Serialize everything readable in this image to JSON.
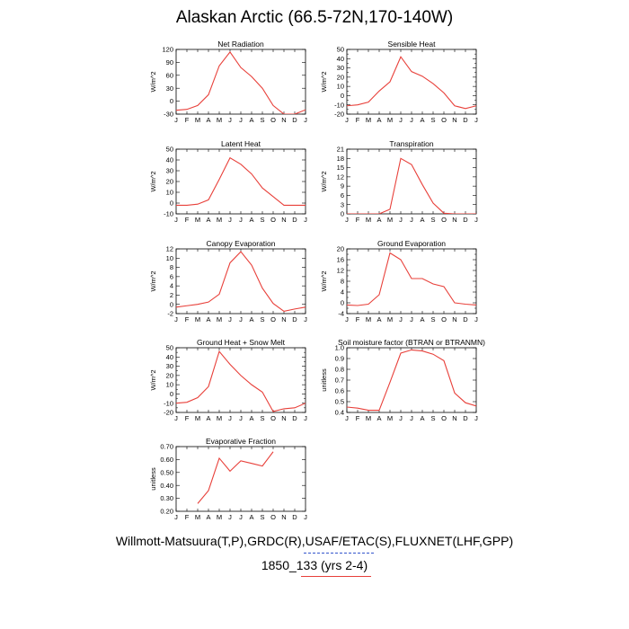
{
  "title": "Alaskan Arctic (66.5-72N,170-140W)",
  "footer": {
    "line1": "Willmott-Matsuura(T,P),GRDC(R),USAF/ETAC(S),FLUXNET(LHF,GPP)",
    "line2": "1850_133 (yrs 2-4)"
  },
  "colors": {
    "series": "#e8403a",
    "legend_dash": "#3355cc"
  },
  "chart_data": [
    {
      "type": "line",
      "title": "Net Radiation",
      "ylabel": "W/m^2",
      "categories": [
        "J",
        "F",
        "M",
        "A",
        "M",
        "J",
        "J",
        "A",
        "S",
        "O",
        "N",
        "D",
        "J"
      ],
      "ylim": [
        -30,
        120
      ],
      "yticks": [
        -30,
        0,
        30,
        60,
        90,
        120
      ],
      "ytick_labels": [
        "-30",
        "0",
        "30",
        "60",
        "90",
        "120"
      ],
      "values": [
        -21,
        -19,
        -10,
        15,
        82,
        114,
        78,
        57,
        30,
        -10,
        -30,
        -30,
        -20
      ]
    },
    {
      "type": "line",
      "title": "Sensible Heat",
      "ylabel": "W/m^2",
      "categories": [
        "J",
        "F",
        "M",
        "A",
        "M",
        "J",
        "J",
        "A",
        "S",
        "O",
        "N",
        "D",
        "J"
      ],
      "ylim": [
        -20,
        50
      ],
      "yticks": [
        -20,
        -10,
        0,
        10,
        20,
        30,
        40,
        50
      ],
      "ytick_labels": [
        "-20",
        "-10",
        "0",
        "10",
        "20",
        "30",
        "40",
        "50"
      ],
      "minor_step": 5,
      "values": [
        -11,
        -10,
        -7,
        5,
        15,
        42,
        26,
        21,
        13,
        3,
        -11,
        -14,
        -11
      ]
    },
    {
      "type": "line",
      "title": "Latent Heat",
      "ylabel": "W/m^2",
      "categories": [
        "J",
        "F",
        "M",
        "A",
        "M",
        "J",
        "J",
        "A",
        "S",
        "O",
        "N",
        "D",
        "J"
      ],
      "ylim": [
        -10,
        50
      ],
      "yticks": [
        -10,
        0,
        10,
        20,
        30,
        40,
        50
      ],
      "ytick_labels": [
        "-10",
        "0",
        "10",
        "20",
        "30",
        "40",
        "50"
      ],
      "values": [
        -2,
        -2,
        -1,
        3,
        22,
        42,
        36,
        27,
        14,
        6,
        -2,
        -2,
        -2
      ]
    },
    {
      "type": "line",
      "title": "Transpiration",
      "ylabel": "W/m^2",
      "categories": [
        "J",
        "F",
        "M",
        "A",
        "M",
        "J",
        "J",
        "A",
        "S",
        "O",
        "N",
        "D",
        "J"
      ],
      "ylim": [
        0,
        21
      ],
      "yticks": [
        0,
        3,
        6,
        9,
        12,
        15,
        18,
        21
      ],
      "ytick_labels": [
        "0",
        "3",
        "6",
        "9",
        "12",
        "15",
        "18",
        "21"
      ],
      "values": [
        0,
        0,
        0,
        0,
        1.5,
        18,
        16,
        9.5,
        3.5,
        0.2,
        0,
        0,
        0
      ]
    },
    {
      "type": "line",
      "title": "Canopy Evaporation",
      "ylabel": "W/m^2",
      "categories": [
        "J",
        "F",
        "M",
        "A",
        "M",
        "J",
        "J",
        "A",
        "S",
        "O",
        "N",
        "D",
        "J"
      ],
      "ylim": [
        -2,
        12
      ],
      "yticks": [
        -2,
        0,
        2,
        4,
        6,
        8,
        10,
        12
      ],
      "ytick_labels": [
        "-2",
        "0",
        "2",
        "4",
        "6",
        "8",
        "10",
        "12"
      ],
      "values": [
        -0.6,
        -0.3,
        0,
        0.5,
        2.2,
        9,
        11.4,
        8.5,
        3.5,
        0.2,
        -1.5,
        -1,
        -0.6
      ]
    },
    {
      "type": "line",
      "title": "Ground Evaporation",
      "ylabel": "W/m^2",
      "categories": [
        "J",
        "F",
        "M",
        "A",
        "M",
        "J",
        "J",
        "A",
        "S",
        "O",
        "N",
        "D",
        "J"
      ],
      "ylim": [
        -4,
        20
      ],
      "yticks": [
        -4,
        0,
        4,
        8,
        12,
        16,
        20
      ],
      "ytick_labels": [
        "-4",
        "0",
        "4",
        "8",
        "12",
        "16",
        "20"
      ],
      "minor_step": 2,
      "values": [
        -0.8,
        -1,
        -0.5,
        3,
        18.5,
        16,
        9,
        9,
        7,
        6,
        0,
        -0.5,
        -0.8
      ]
    },
    {
      "type": "line",
      "title": "Ground Heat + Snow Melt",
      "ylabel": "W/m^2",
      "categories": [
        "J",
        "F",
        "M",
        "A",
        "M",
        "J",
        "J",
        "A",
        "S",
        "O",
        "N",
        "D",
        "J"
      ],
      "ylim": [
        -20,
        50
      ],
      "yticks": [
        -20,
        -10,
        0,
        10,
        20,
        30,
        40,
        50
      ],
      "ytick_labels": [
        "-20",
        "-10",
        "0",
        "10",
        "20",
        "30",
        "40",
        "50"
      ],
      "minor_step": 5,
      "values": [
        -10,
        -9,
        -4,
        8,
        46,
        32,
        20,
        10,
        2,
        -19,
        -16,
        -15,
        -10
      ]
    },
    {
      "type": "line",
      "title": "Soil moisture factor (BTRAN or BTRANMN)",
      "ylabel": "unitless",
      "categories": [
        "J",
        "F",
        "M",
        "A",
        "M",
        "J",
        "J",
        "A",
        "S",
        "O",
        "N",
        "D",
        "J"
      ],
      "ylim": [
        0.4,
        1.0
      ],
      "yticks": [
        0.4,
        0.5,
        0.6,
        0.7,
        0.8,
        0.9,
        1.0
      ],
      "ytick_labels": [
        "0.4",
        "0.5",
        "0.6",
        "0.7",
        "0.8",
        "0.9",
        "1.0"
      ],
      "values": [
        0.45,
        0.44,
        0.42,
        0.42,
        0.68,
        0.95,
        0.98,
        0.97,
        0.94,
        0.88,
        0.58,
        0.49,
        0.46
      ]
    },
    {
      "type": "line",
      "title": "Evaporative Fraction",
      "ylabel": "unitless",
      "categories": [
        "J",
        "F",
        "M",
        "A",
        "M",
        "J",
        "J",
        "A",
        "S",
        "O",
        "N",
        "D",
        "J"
      ],
      "ylim": [
        0.2,
        0.7
      ],
      "yticks": [
        0.2,
        0.3,
        0.4,
        0.5,
        0.6,
        0.7
      ],
      "ytick_labels": [
        "0.20",
        "0.30",
        "0.40",
        "0.50",
        "0.60",
        "0.70"
      ],
      "values": [
        null,
        null,
        0.26,
        0.36,
        0.61,
        0.51,
        0.59,
        0.57,
        0.55,
        0.66,
        null,
        null,
        null
      ]
    }
  ]
}
